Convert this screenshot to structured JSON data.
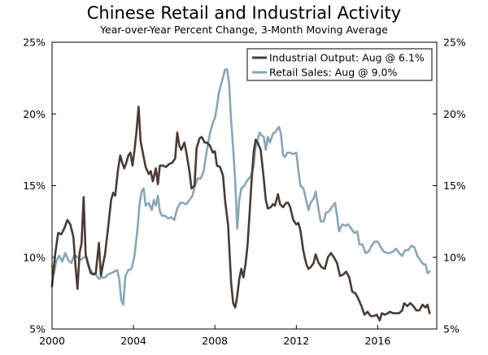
{
  "colors": {
    "industrial": "#4a3b33",
    "retail": "#8aa6b8",
    "frame": "#000000"
  },
  "chart_data": {
    "type": "line",
    "title": "Chinese Retail and Industrial Activity",
    "subtitle": "Year-over-Year Percent Change, 3-Month Moving Average",
    "xlabel": "",
    "ylabel": "",
    "xlim": [
      2000,
      2018.9
    ],
    "ylim": [
      5,
      25
    ],
    "x_ticks": [
      {
        "value": 2000,
        "label": "2000"
      },
      {
        "value": 2004,
        "label": "2004"
      },
      {
        "value": 2008,
        "label": "2008"
      },
      {
        "value": 2012,
        "label": "2012"
      },
      {
        "value": 2016,
        "label": "2016"
      }
    ],
    "y_ticks_left": [
      {
        "value": 25,
        "label": "25%"
      },
      {
        "value": 20,
        "label": "20%"
      },
      {
        "value": 15,
        "label": "15%"
      },
      {
        "value": 10,
        "label": "10%"
      },
      {
        "value": 5,
        "label": "5%"
      }
    ],
    "y_ticks_right": [
      {
        "value": 25,
        "label": "25%"
      },
      {
        "value": 20,
        "label": "20%"
      },
      {
        "value": 15,
        "label": "15%"
      },
      {
        "value": 10,
        "label": "10%"
      },
      {
        "value": 5,
        "label": "5%"
      }
    ],
    "legend_position": "top-right",
    "series": [
      {
        "name": "Industrial Output: Aug @ 6.1%",
        "color": "#4a3b33",
        "points": [
          [
            2000.0,
            8.0
          ],
          [
            2000.15,
            10.2
          ],
          [
            2000.3,
            11.7
          ],
          [
            2000.45,
            11.6
          ],
          [
            2000.6,
            12.0
          ],
          [
            2000.75,
            12.6
          ],
          [
            2000.9,
            12.3
          ],
          [
            2001.05,
            11.4
          ],
          [
            2001.15,
            9.4
          ],
          [
            2001.25,
            7.8
          ],
          [
            2001.35,
            10.3
          ],
          [
            2001.45,
            11.0
          ],
          [
            2001.55,
            14.2
          ],
          [
            2001.65,
            10.2
          ],
          [
            2001.75,
            9.6
          ],
          [
            2001.9,
            8.9
          ],
          [
            2002.05,
            8.8
          ],
          [
            2002.15,
            8.9
          ],
          [
            2002.3,
            11.0
          ],
          [
            2002.4,
            8.7
          ],
          [
            2002.5,
            9.5
          ],
          [
            2002.6,
            10.2
          ],
          [
            2002.75,
            12.0
          ],
          [
            2002.9,
            14.0
          ],
          [
            2003.0,
            14.5
          ],
          [
            2003.1,
            14.3
          ],
          [
            2003.25,
            16.2
          ],
          [
            2003.35,
            17.1
          ],
          [
            2003.45,
            16.6
          ],
          [
            2003.55,
            16.2
          ],
          [
            2003.65,
            16.6
          ],
          [
            2003.75,
            17.1
          ],
          [
            2003.85,
            17.3
          ],
          [
            2003.95,
            16.4
          ],
          [
            2004.05,
            17.5
          ],
          [
            2004.15,
            18.8
          ],
          [
            2004.25,
            20.5
          ],
          [
            2004.35,
            18.1
          ],
          [
            2004.5,
            17.0
          ],
          [
            2004.6,
            16.3
          ],
          [
            2004.75,
            15.8
          ],
          [
            2004.85,
            16.0
          ],
          [
            2004.95,
            15.3
          ],
          [
            2005.1,
            16.2
          ],
          [
            2005.2,
            15.1
          ],
          [
            2005.3,
            16.4
          ],
          [
            2005.45,
            16.4
          ],
          [
            2005.6,
            16.3
          ],
          [
            2005.75,
            16.5
          ],
          [
            2005.9,
            16.6
          ],
          [
            2006.05,
            16.9
          ],
          [
            2006.15,
            18.7
          ],
          [
            2006.25,
            17.8
          ],
          [
            2006.35,
            17.5
          ],
          [
            2006.5,
            18.0
          ],
          [
            2006.6,
            17.3
          ],
          [
            2006.75,
            16.0
          ],
          [
            2006.85,
            14.8
          ],
          [
            2007.0,
            15.0
          ],
          [
            2007.1,
            17.6
          ],
          [
            2007.25,
            18.3
          ],
          [
            2007.35,
            18.4
          ],
          [
            2007.5,
            18.0
          ],
          [
            2007.6,
            18.0
          ],
          [
            2007.75,
            17.8
          ],
          [
            2007.9,
            17.3
          ],
          [
            2008.0,
            17.4
          ],
          [
            2008.1,
            16.4
          ],
          [
            2008.25,
            16.3
          ],
          [
            2008.4,
            15.7
          ],
          [
            2008.5,
            14.0
          ],
          [
            2008.65,
            12.2
          ],
          [
            2008.8,
            8.2
          ],
          [
            2008.9,
            6.8
          ],
          [
            2009.0,
            6.5
          ],
          [
            2009.1,
            7.3
          ],
          [
            2009.2,
            8.5
          ],
          [
            2009.3,
            9.2
          ],
          [
            2009.4,
            8.6
          ],
          [
            2009.5,
            9.5
          ],
          [
            2009.6,
            10.8
          ],
          [
            2009.7,
            13.0
          ],
          [
            2009.8,
            15.3
          ],
          [
            2009.9,
            17.3
          ],
          [
            2010.0,
            18.2
          ],
          [
            2010.1,
            18.0
          ],
          [
            2010.25,
            17.5
          ],
          [
            2010.4,
            15.5
          ],
          [
            2010.5,
            14.0
          ],
          [
            2010.6,
            13.4
          ],
          [
            2010.75,
            13.5
          ],
          [
            2010.85,
            13.7
          ],
          [
            2010.95,
            13.6
          ],
          [
            2011.1,
            14.4
          ],
          [
            2011.2,
            13.7
          ],
          [
            2011.35,
            13.5
          ],
          [
            2011.5,
            13.8
          ],
          [
            2011.6,
            13.8
          ],
          [
            2011.7,
            13.5
          ],
          [
            2011.85,
            12.6
          ],
          [
            2012.0,
            12.3
          ],
          [
            2012.1,
            12.4
          ],
          [
            2012.2,
            11.9
          ],
          [
            2012.35,
            10.4
          ],
          [
            2012.5,
            9.5
          ],
          [
            2012.6,
            9.2
          ],
          [
            2012.7,
            9.3
          ],
          [
            2012.85,
            9.6
          ],
          [
            2012.95,
            10.2
          ],
          [
            2013.1,
            9.6
          ],
          [
            2013.25,
            9.3
          ],
          [
            2013.4,
            9.2
          ],
          [
            2013.55,
            10.0
          ],
          [
            2013.7,
            10.3
          ],
          [
            2013.85,
            10.0
          ],
          [
            2014.0,
            9.6
          ],
          [
            2014.15,
            8.7
          ],
          [
            2014.3,
            8.8
          ],
          [
            2014.45,
            9.0
          ],
          [
            2014.6,
            8.6
          ],
          [
            2014.75,
            7.6
          ],
          [
            2014.9,
            7.5
          ],
          [
            2015.05,
            7.1
          ],
          [
            2015.2,
            6.6
          ],
          [
            2015.35,
            6.0
          ],
          [
            2015.5,
            6.2
          ],
          [
            2015.65,
            5.9
          ],
          [
            2015.8,
            5.9
          ],
          [
            2015.95,
            6.0
          ],
          [
            2016.1,
            5.6
          ],
          [
            2016.2,
            6.1
          ],
          [
            2016.35,
            6.0
          ],
          [
            2016.5,
            6.1
          ],
          [
            2016.6,
            6.2
          ],
          [
            2016.75,
            6.1
          ],
          [
            2016.9,
            6.1
          ],
          [
            2017.05,
            6.1
          ],
          [
            2017.2,
            6.3
          ],
          [
            2017.3,
            6.8
          ],
          [
            2017.45,
            6.6
          ],
          [
            2017.6,
            6.8
          ],
          [
            2017.75,
            6.6
          ],
          [
            2017.9,
            6.3
          ],
          [
            2018.05,
            6.3
          ],
          [
            2018.2,
            6.7
          ],
          [
            2018.35,
            6.5
          ],
          [
            2018.45,
            6.7
          ],
          [
            2018.55,
            6.1
          ]
        ]
      },
      {
        "name": "Retail Sales: Aug @ 9.0%",
        "color": "#8aa6b8",
        "points": [
          [
            2000.0,
            9.4
          ],
          [
            2000.1,
            8.9
          ],
          [
            2000.2,
            9.7
          ],
          [
            2000.35,
            10.1
          ],
          [
            2000.5,
            9.7
          ],
          [
            2000.65,
            10.3
          ],
          [
            2000.8,
            9.8
          ],
          [
            2000.95,
            9.6
          ],
          [
            2001.1,
            10.2
          ],
          [
            2001.25,
            10.0
          ],
          [
            2001.4,
            9.8
          ],
          [
            2001.55,
            10.0
          ],
          [
            2001.7,
            10.0
          ],
          [
            2001.85,
            9.2
          ],
          [
            2002.0,
            8.9
          ],
          [
            2002.15,
            8.8
          ],
          [
            2002.3,
            8.5
          ],
          [
            2002.45,
            8.6
          ],
          [
            2002.6,
            8.6
          ],
          [
            2002.75,
            8.8
          ],
          [
            2002.9,
            8.9
          ],
          [
            2003.05,
            9.0
          ],
          [
            2003.2,
            9.1
          ],
          [
            2003.3,
            8.5
          ],
          [
            2003.4,
            7.0
          ],
          [
            2003.5,
            6.7
          ],
          [
            2003.6,
            8.7
          ],
          [
            2003.75,
            9.1
          ],
          [
            2003.9,
            9.2
          ],
          [
            2004.05,
            10.1
          ],
          [
            2004.2,
            12.0
          ],
          [
            2004.3,
            13.7
          ],
          [
            2004.4,
            14.6
          ],
          [
            2004.5,
            14.8
          ],
          [
            2004.6,
            13.6
          ],
          [
            2004.75,
            13.8
          ],
          [
            2004.9,
            13.3
          ],
          [
            2005.0,
            14.0
          ],
          [
            2005.1,
            13.6
          ],
          [
            2005.2,
            14.3
          ],
          [
            2005.3,
            13.2
          ],
          [
            2005.4,
            12.9
          ],
          [
            2005.55,
            12.9
          ],
          [
            2005.7,
            12.7
          ],
          [
            2005.85,
            12.8
          ],
          [
            2006.0,
            12.6
          ],
          [
            2006.15,
            13.4
          ],
          [
            2006.3,
            13.8
          ],
          [
            2006.45,
            13.8
          ],
          [
            2006.6,
            13.7
          ],
          [
            2006.75,
            14.0
          ],
          [
            2006.9,
            14.3
          ],
          [
            2007.0,
            14.9
          ],
          [
            2007.15,
            15.5
          ],
          [
            2007.3,
            15.5
          ],
          [
            2007.45,
            16.0
          ],
          [
            2007.6,
            17.4
          ],
          [
            2007.75,
            18.6
          ],
          [
            2007.9,
            19.4
          ],
          [
            2008.0,
            19.7
          ],
          [
            2008.1,
            20.5
          ],
          [
            2008.2,
            21.5
          ],
          [
            2008.35,
            22.3
          ],
          [
            2008.5,
            23.1
          ],
          [
            2008.6,
            23.1
          ],
          [
            2008.7,
            22.1
          ],
          [
            2008.8,
            19.5
          ],
          [
            2008.9,
            17.6
          ],
          [
            2009.0,
            15.3
          ],
          [
            2009.1,
            12.0
          ],
          [
            2009.2,
            14.0
          ],
          [
            2009.3,
            14.8
          ],
          [
            2009.45,
            15.0
          ],
          [
            2009.6,
            15.4
          ],
          [
            2009.75,
            15.6
          ],
          [
            2009.9,
            16.3
          ],
          [
            2010.0,
            17.7
          ],
          [
            2010.1,
            18.2
          ],
          [
            2010.2,
            18.7
          ],
          [
            2010.3,
            18.5
          ],
          [
            2010.4,
            18.4
          ],
          [
            2010.5,
            17.5
          ],
          [
            2010.6,
            18.4
          ],
          [
            2010.7,
            18.0
          ],
          [
            2010.85,
            18.6
          ],
          [
            2011.0,
            18.8
          ],
          [
            2011.15,
            19.1
          ],
          [
            2011.25,
            18.6
          ],
          [
            2011.35,
            17.1
          ],
          [
            2011.45,
            17.0
          ],
          [
            2011.55,
            17.3
          ],
          [
            2011.7,
            17.3
          ],
          [
            2011.85,
            17.2
          ],
          [
            2012.0,
            17.3
          ],
          [
            2012.1,
            16.1
          ],
          [
            2012.2,
            15.0
          ],
          [
            2012.35,
            14.8
          ],
          [
            2012.5,
            13.9
          ],
          [
            2012.6,
            13.3
          ],
          [
            2012.7,
            13.8
          ],
          [
            2012.85,
            14.1
          ],
          [
            2012.95,
            14.6
          ],
          [
            2013.1,
            13.3
          ],
          [
            2013.2,
            12.5
          ],
          [
            2013.35,
            12.5
          ],
          [
            2013.45,
            13.1
          ],
          [
            2013.6,
            13.2
          ],
          [
            2013.75,
            13.5
          ],
          [
            2013.9,
            13.8
          ],
          [
            2014.0,
            12.9
          ],
          [
            2014.1,
            11.8
          ],
          [
            2014.25,
            12.3
          ],
          [
            2014.4,
            12.2
          ],
          [
            2014.55,
            12.3
          ],
          [
            2014.7,
            12.0
          ],
          [
            2014.85,
            11.7
          ],
          [
            2015.0,
            11.8
          ],
          [
            2015.1,
            10.9
          ],
          [
            2015.25,
            10.9
          ],
          [
            2015.4,
            10.3
          ],
          [
            2015.55,
            10.4
          ],
          [
            2015.7,
            10.8
          ],
          [
            2015.85,
            11.1
          ],
          [
            2016.0,
            11.1
          ],
          [
            2016.15,
            10.7
          ],
          [
            2016.3,
            10.4
          ],
          [
            2016.45,
            10.3
          ],
          [
            2016.6,
            10.3
          ],
          [
            2016.75,
            10.4
          ],
          [
            2016.9,
            10.6
          ],
          [
            2017.05,
            10.3
          ],
          [
            2017.2,
            10.1
          ],
          [
            2017.35,
            10.5
          ],
          [
            2017.5,
            10.5
          ],
          [
            2017.65,
            10.8
          ],
          [
            2017.8,
            10.7
          ],
          [
            2017.95,
            10.1
          ],
          [
            2018.1,
            9.8
          ],
          [
            2018.25,
            9.5
          ],
          [
            2018.35,
            9.5
          ],
          [
            2018.45,
            8.9
          ],
          [
            2018.55,
            9.0
          ]
        ]
      }
    ]
  }
}
